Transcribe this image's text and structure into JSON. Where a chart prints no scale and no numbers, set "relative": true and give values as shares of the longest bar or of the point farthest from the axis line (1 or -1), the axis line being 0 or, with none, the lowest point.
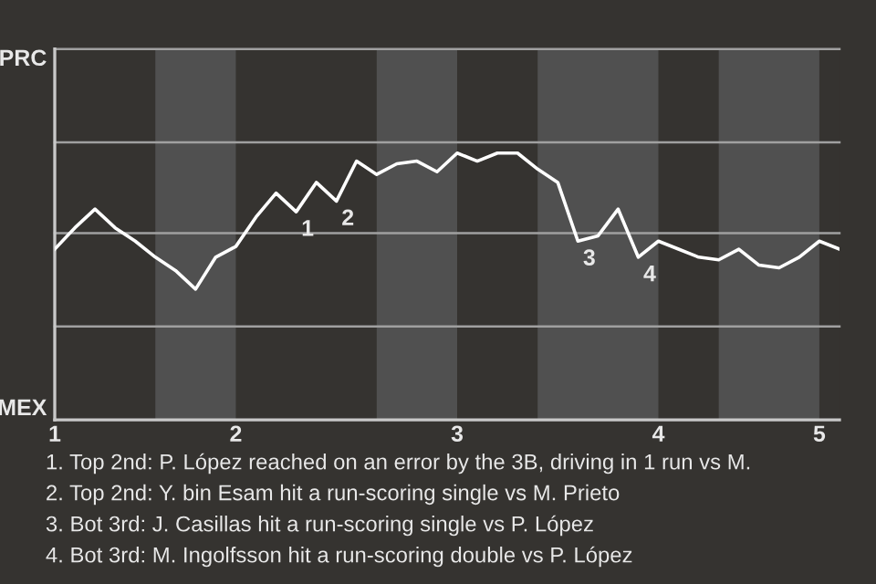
{
  "chart_data": {
    "type": "line",
    "relative": true,
    "categories": [
      "1",
      null,
      null,
      null,
      null,
      null,
      null,
      null,
      null,
      "2",
      null,
      null,
      null,
      null,
      null,
      null,
      null,
      null,
      null,
      null,
      "3",
      null,
      null,
      null,
      null,
      null,
      null,
      null,
      null,
      null,
      "4",
      null,
      null,
      null,
      null,
      null,
      null,
      null,
      "5",
      null
    ],
    "series": [
      {
        "color": "#ffffff",
        "values": [
          0.64,
          0.72,
          0.79,
          0.72,
          0.67,
          0.61,
          0.56,
          0.49,
          0.61,
          0.65,
          0.76,
          0.85,
          0.78,
          0.89,
          0.82,
          0.97,
          0.92,
          0.96,
          0.97,
          0.93,
          1,
          0.97,
          1,
          1,
          0.94,
          0.89,
          0.67,
          0.69,
          0.79,
          0.61,
          0.67,
          0.64,
          0.61,
          0.6,
          0.64,
          0.58,
          0.57,
          0.61,
          0.67,
          0.64
        ]
      }
    ],
    "marker": "none",
    "line_style": "solid",
    "ref_lines": [
      {
        "axis": "y",
        "value": 0.35,
        "color": "#a0a0a0"
      },
      {
        "axis": "y",
        "value": 0.7,
        "color": "#a0a0a0"
      },
      {
        "axis": "y",
        "value": 1.04,
        "color": "#a0a0a0"
      },
      {
        "axis": "y",
        "value": 1.39,
        "color": "#a0a0a0"
      }
    ],
    "annotations": [
      "PRC",
      "MEX",
      {
        "text": "1",
        "y": 0.78
      },
      {
        "text": "2",
        "y": 0.82
      },
      {
        "text": "3",
        "y": 0.67
      },
      {
        "text": "4",
        "y": 0.61
      },
      "1. Top 2nd: P. López reached on an error by the 3B, driving in 1 run vs M.",
      "2. Top 2nd: Y. bin Esam hit a run-scoring single vs M. Prieto",
      "3. Bot 3rd: J. Casillas hit a run-scoring single vs P. López",
      "4. Bot 3rd: M. Ingolfsson hit a run-scoring double vs P. López"
    ]
  }
}
